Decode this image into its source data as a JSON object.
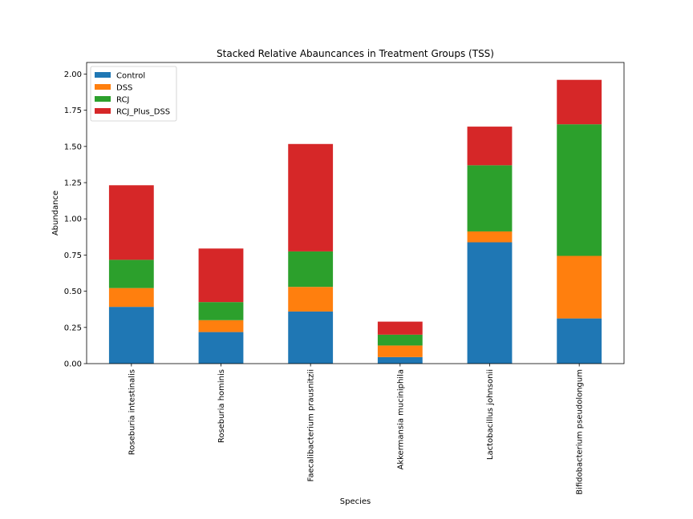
{
  "chart_data": {
    "type": "bar",
    "stacked": true,
    "title": "Stacked Relative Abauncances in Treatment Groups (TSS)",
    "xlabel": "Species",
    "ylabel": "Abundance",
    "ylim": [
      0,
      2.08
    ],
    "yticks": [
      "0.00",
      "0.25",
      "0.50",
      "0.75",
      "1.00",
      "1.25",
      "1.50",
      "1.75",
      "2.00"
    ],
    "tick_label_rotation": "vertical",
    "legend_position": "top-left",
    "grid": false,
    "categories": [
      "Roseburia intestinalis",
      "Roseburia hominis",
      "Faecalibacterium prausnitzii",
      "Akkermansia muciniphila",
      "Lactobacillus johnsonii",
      "Bifidobacterium pseudolongum"
    ],
    "series": [
      {
        "name": "Control",
        "color": "#1f77b4",
        "values": [
          0.392,
          0.218,
          0.36,
          0.045,
          0.838,
          0.312
        ]
      },
      {
        "name": "DSS",
        "color": "#ff7f0e",
        "values": [
          0.13,
          0.082,
          0.17,
          0.08,
          0.075,
          0.432
        ]
      },
      {
        "name": "RCJ",
        "color": "#2ca02c",
        "values": [
          0.195,
          0.125,
          0.245,
          0.075,
          0.457,
          0.909
        ]
      },
      {
        "name": "RCJ_Plus_DSS",
        "color": "#d62728",
        "values": [
          0.515,
          0.37,
          0.742,
          0.09,
          0.267,
          0.307
        ]
      }
    ]
  }
}
